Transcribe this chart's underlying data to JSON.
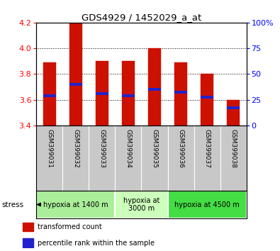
{
  "title": "GDS4929 / 1452029_a_at",
  "samples": [
    "GSM399031",
    "GSM399032",
    "GSM399033",
    "GSM399034",
    "GSM399035",
    "GSM399036",
    "GSM399037",
    "GSM399038"
  ],
  "bar_bottom": 3.4,
  "bar_tops": [
    3.89,
    4.2,
    3.9,
    3.9,
    4.0,
    3.89,
    3.8,
    3.6
  ],
  "blue_marker_values": [
    3.63,
    3.72,
    3.65,
    3.63,
    3.68,
    3.66,
    3.62,
    3.54
  ],
  "ylim": [
    3.4,
    4.2
  ],
  "yticks_left": [
    3.4,
    3.6,
    3.8,
    4.0,
    4.2
  ],
  "yticks_right": [
    0,
    25,
    50,
    75,
    100
  ],
  "bar_color": "#cc1100",
  "blue_color": "#2222cc",
  "sample_bg": "#c8c8c8",
  "groups": [
    {
      "label": "hypoxia at 1400 m",
      "start": 0,
      "end": 3,
      "color": "#aaee99"
    },
    {
      "label": "hypoxia at\n3000 m",
      "start": 3,
      "end": 5,
      "color": "#ccffbb"
    },
    {
      "label": "hypoxia at 4500 m",
      "start": 5,
      "end": 8,
      "color": "#44dd44"
    }
  ],
  "stress_label": "stress",
  "legend_items": [
    {
      "color": "#cc1100",
      "label": "transformed count"
    },
    {
      "color": "#2222cc",
      "label": "percentile rank within the sample"
    }
  ],
  "bar_width": 0.5
}
